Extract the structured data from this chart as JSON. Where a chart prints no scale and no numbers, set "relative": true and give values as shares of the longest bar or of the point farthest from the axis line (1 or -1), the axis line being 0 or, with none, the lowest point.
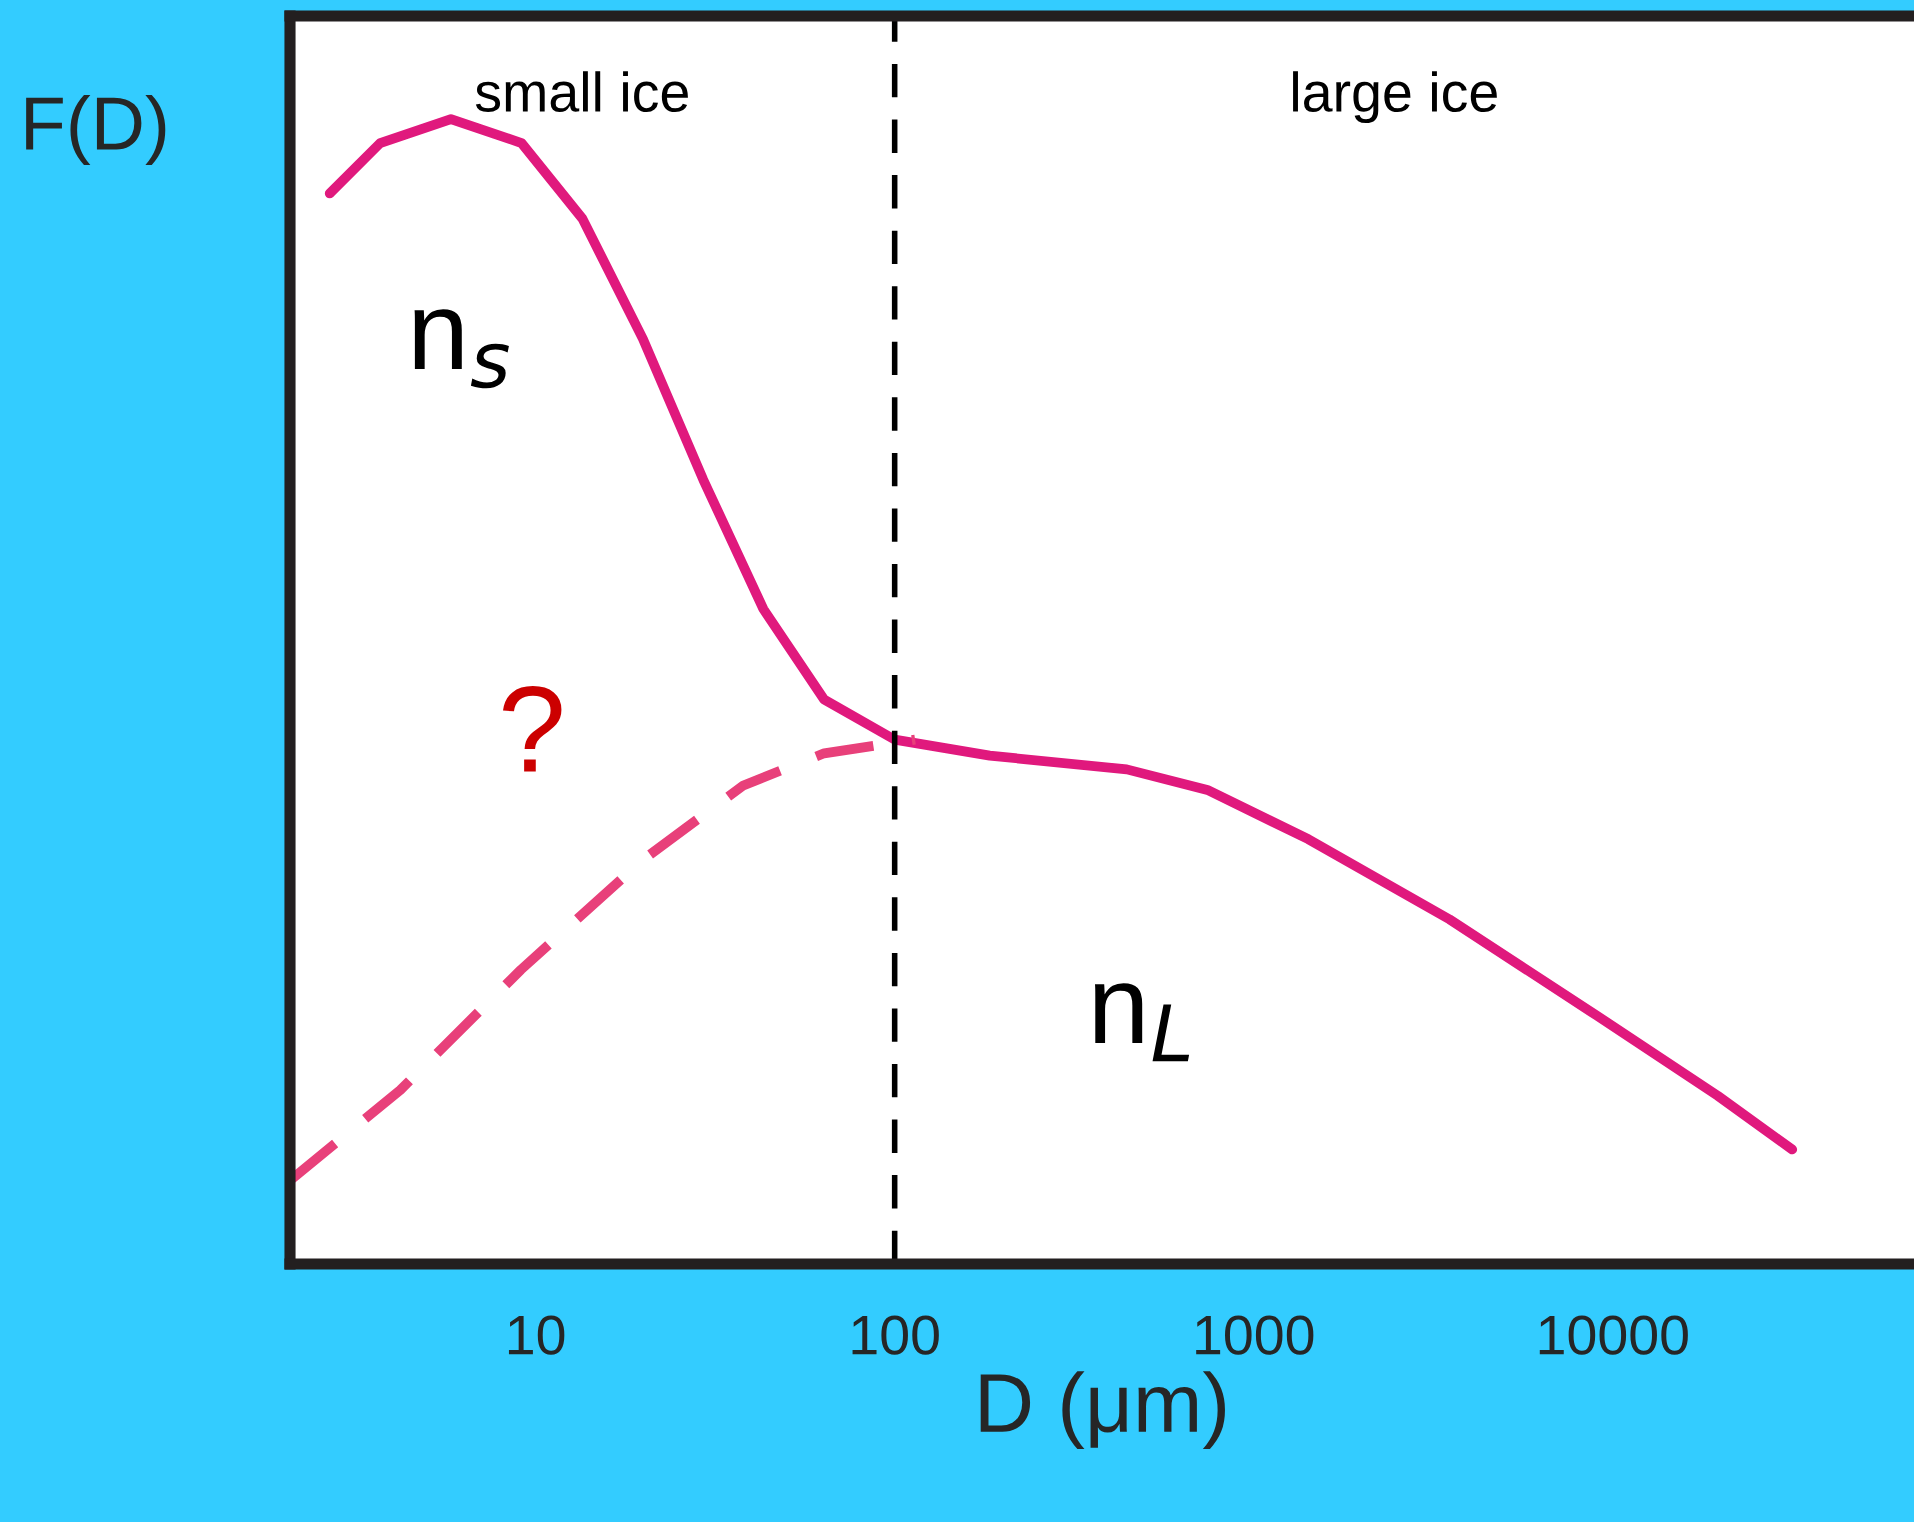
{
  "chart_data": {
    "type": "line",
    "relative": true,
    "xlabel": "D (μm)",
    "ylabel": "F(D)",
    "log": "x",
    "xlim": [
      2.07,
      69000
    ],
    "xticks": [
      10,
      100,
      1000,
      10000
    ],
    "grid": false,
    "legend": false,
    "marker": "none",
    "series": [
      {
        "color": "#e0197d",
        "line_style": "solid",
        "x": [
          2.67,
          3.69,
          5.81,
          9.14,
          13.5,
          19.9,
          29.3,
          43.1,
          63.6,
          100,
          184,
          443,
          743,
          1419,
          3510,
          9020,
          19600,
          31600
        ],
        "values": [
          0.935,
          0.979,
          1.0,
          0.979,
          0.913,
          0.808,
          0.685,
          0.572,
          0.493,
          0.458,
          0.444,
          0.432,
          0.414,
          0.371,
          0.301,
          0.217,
          0.147,
          0.1
        ]
      },
      {
        "color": "#e8407a",
        "line_style": "dashed",
        "x": [
          2.07,
          4.2,
          9.1,
          19.9,
          37.9,
          63.6,
          114
        ],
        "values": [
          0.073,
          0.152,
          0.257,
          0.353,
          0.418,
          0.446,
          0.458
        ]
      }
    ],
    "ref_lines": [
      {
        "axis": "x",
        "value": 100,
        "label": null,
        "color": "#000000",
        "line_style": "dashed"
      }
    ],
    "annotations": [
      "small ice",
      "large ice",
      "n$_{s}$",
      "n$_{L}$",
      "?"
    ]
  }
}
